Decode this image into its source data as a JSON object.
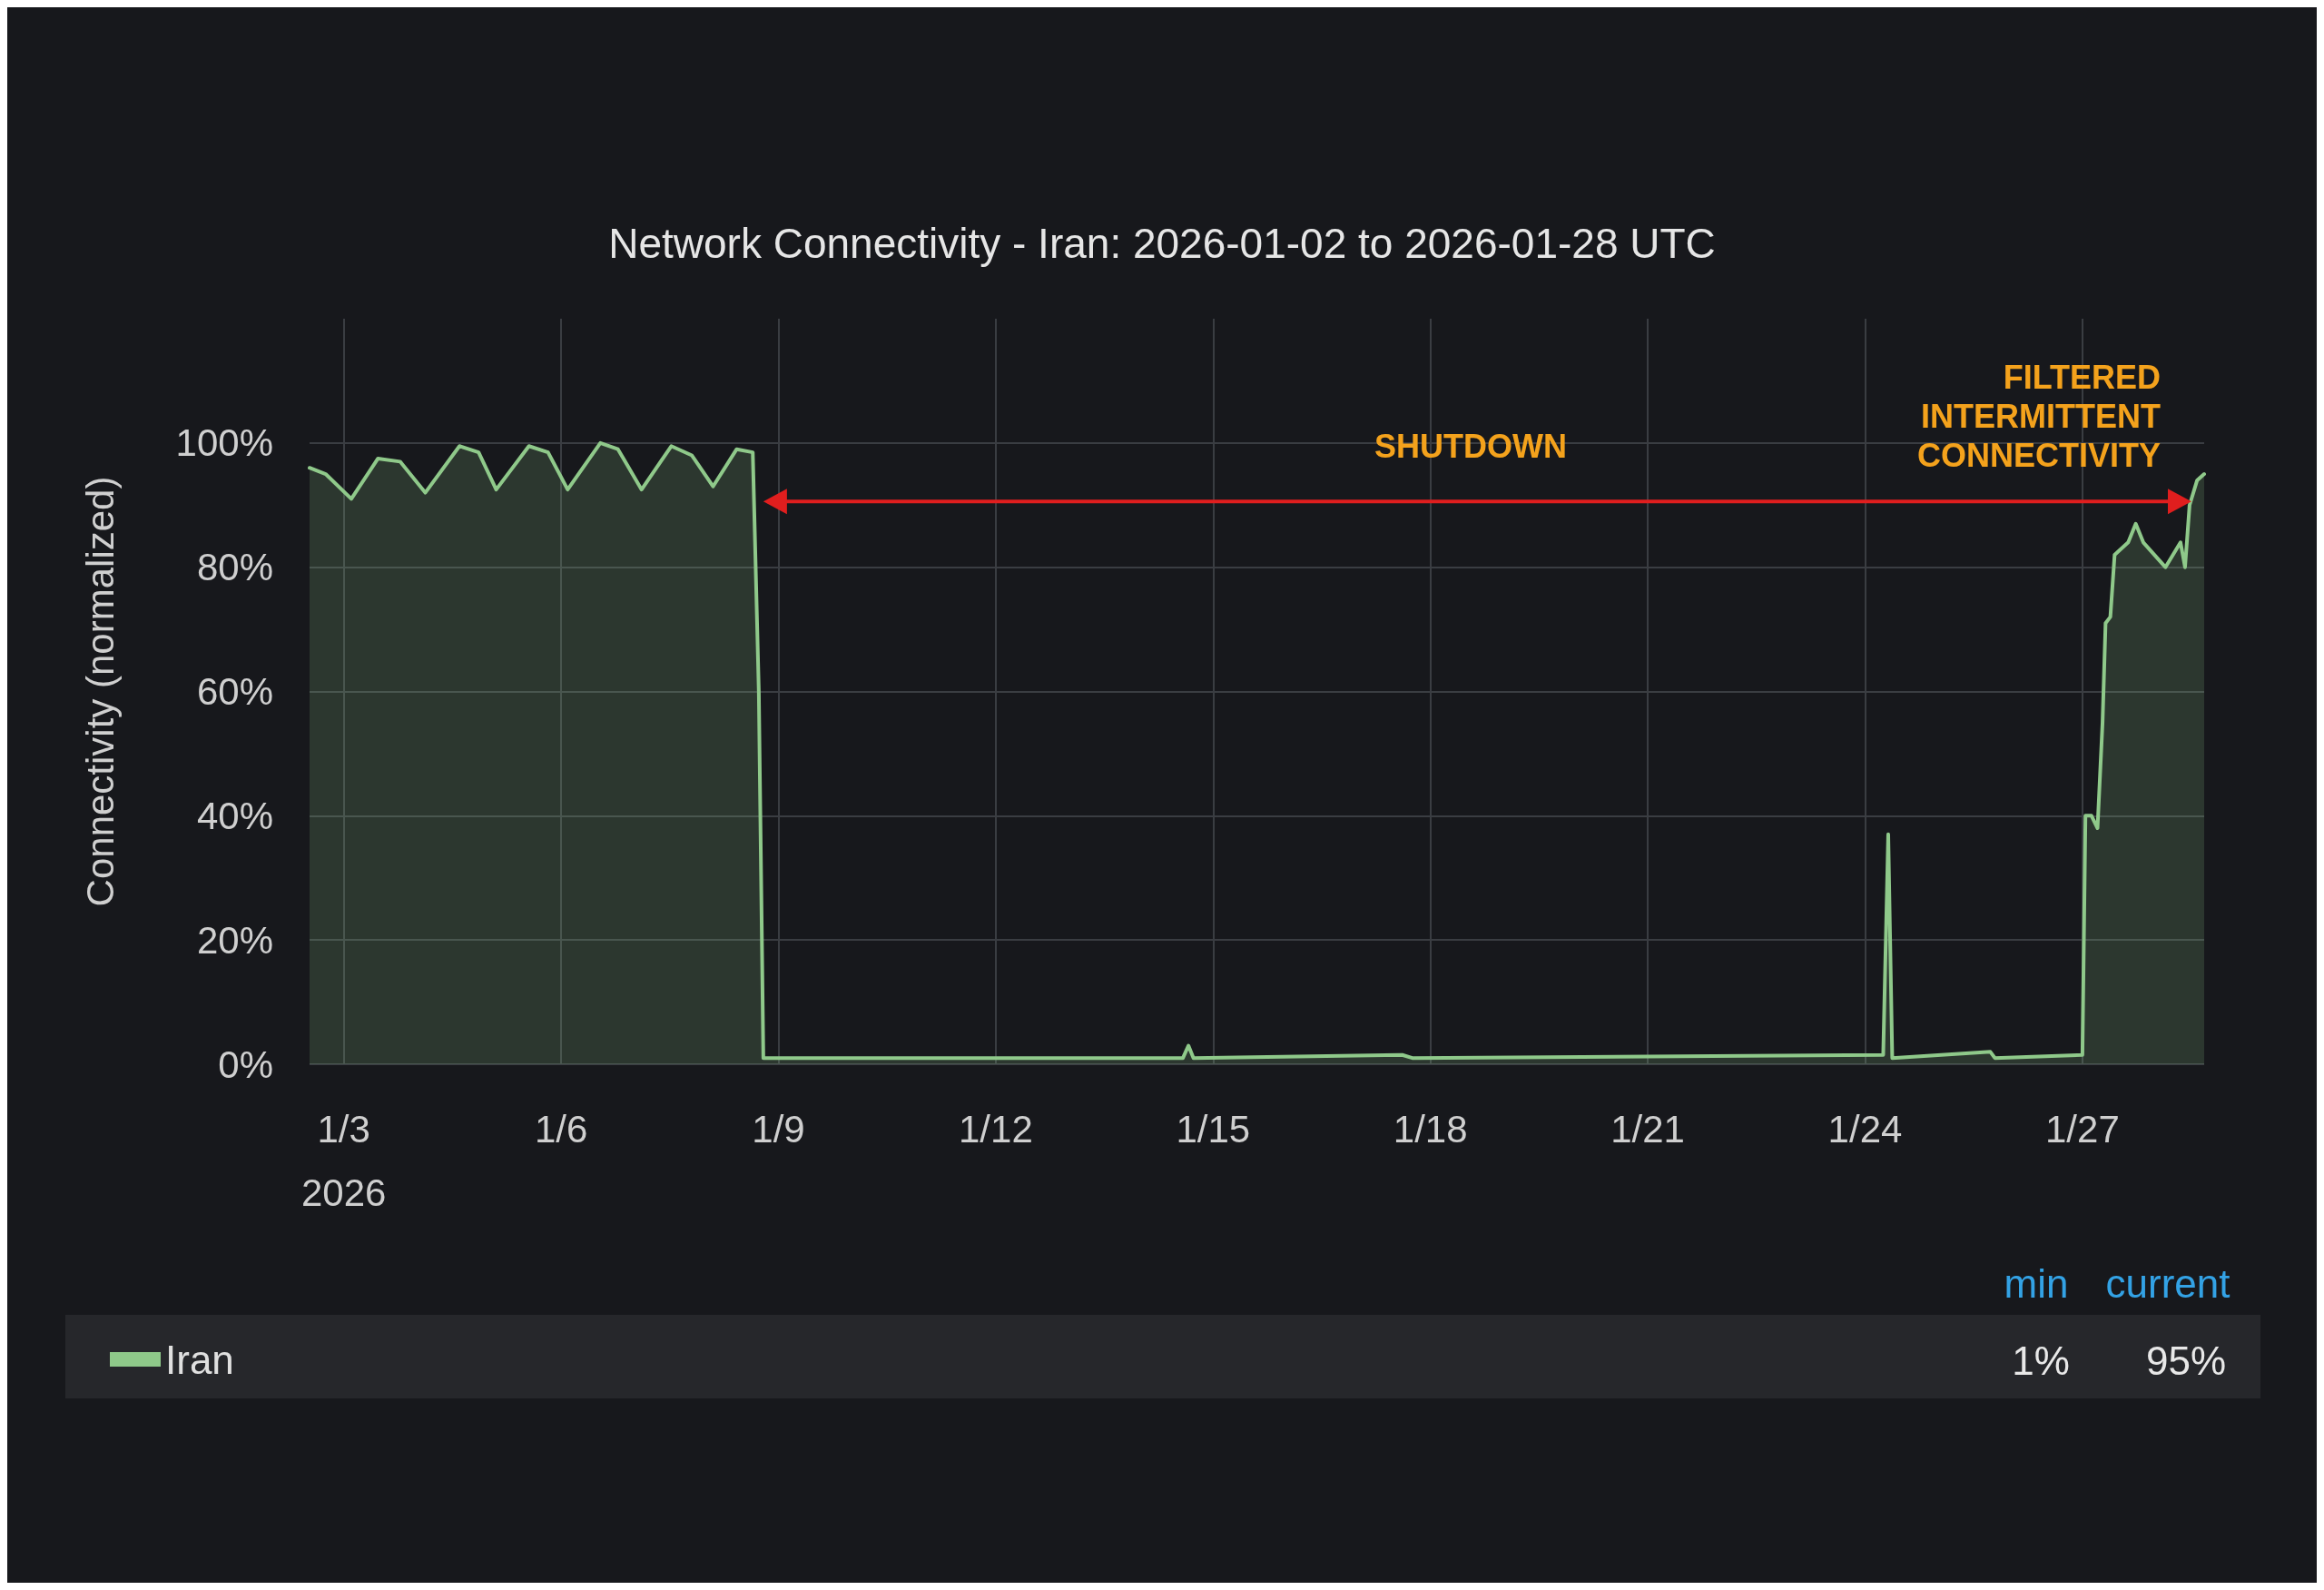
{
  "chart_data": {
    "type": "area",
    "title": "Network Connectivity - Iran: 2026-01-02 to 2026-01-28 UTC",
    "ylabel": "Connectivity (normalized)",
    "x": [
      "2026-01-02T12:40",
      "2026-01-02T18:00",
      "2026-01-03T02:30",
      "2026-01-03T11:20",
      "2026-01-03T18:40",
      "2026-01-04T03:00",
      "2026-01-04T14:20",
      "2026-01-04T20:40",
      "2026-01-05T02:30",
      "2026-01-05T13:20",
      "2026-01-05T19:40",
      "2026-01-06T02:10",
      "2026-01-06T13:00",
      "2026-01-06T18:50",
      "2026-01-07T02:40",
      "2026-01-07T12:30",
      "2026-01-07T19:20",
      "2026-01-08T02:20",
      "2026-01-08T10:10",
      "2026-01-08T15:30",
      "2026-01-08T17:30",
      "2026-01-08T19:00",
      "2026-01-11T12:00",
      "2026-01-14T14:00",
      "2026-01-14T15:50",
      "2026-01-14T17:30",
      "2026-01-17T14:40",
      "2026-01-17T18:00",
      "2026-01-24T06:00",
      "2026-01-24T07:40",
      "2026-01-24T09:00",
      "2026-01-25T17:30",
      "2026-01-25T19:00",
      "2026-01-27T00:00",
      "2026-01-27T01:00",
      "2026-01-27T03:00",
      "2026-01-27T05:00",
      "2026-01-27T06:40",
      "2026-01-27T07:40",
      "2026-01-27T09:15",
      "2026-01-27T10:40",
      "2026-01-27T15:10",
      "2026-01-27T17:40",
      "2026-01-27T20:10",
      "2026-01-28T03:30",
      "2026-01-28T08:30",
      "2026-01-28T10:00",
      "2026-01-28T11:30",
      "2026-01-28T14:00",
      "2026-01-28T16:20"
    ],
    "series": [
      {
        "name": "Iran",
        "color": "#8fc98a",
        "values": [
          96,
          95,
          91,
          97.5,
          97,
          92,
          99.5,
          98.5,
          92.5,
          99.5,
          98.5,
          92.5,
          100,
          99,
          92.5,
          99.5,
          98,
          93,
          99,
          98.5,
          60,
          1,
          1,
          1,
          3,
          1,
          1.5,
          1,
          1.5,
          37,
          1,
          2,
          1,
          1.5,
          40,
          40,
          38,
          55,
          71,
          72,
          82,
          84,
          87,
          84,
          80,
          84,
          80,
          90,
          94,
          95
        ]
      }
    ],
    "xlim": [
      "2026-01-02T12:40",
      "2026-01-28T16:20"
    ],
    "xticks": [
      {
        "value": "2026-01-03",
        "label": "1/3\n2026"
      },
      {
        "value": "2026-01-06",
        "label": "1/6"
      },
      {
        "value": "2026-01-09",
        "label": "1/9"
      },
      {
        "value": "2026-01-12",
        "label": "1/12"
      },
      {
        "value": "2026-01-15",
        "label": "1/15"
      },
      {
        "value": "2026-01-18",
        "label": "1/18"
      },
      {
        "value": "2026-01-21",
        "label": "1/21"
      },
      {
        "value": "2026-01-24",
        "label": "1/24"
      },
      {
        "value": "2026-01-27",
        "label": "1/27"
      }
    ],
    "ylim": [
      0,
      120
    ],
    "yticks": [
      {
        "value": 0,
        "label": "0%"
      },
      {
        "value": 20,
        "label": "20%"
      },
      {
        "value": 40,
        "label": "40%"
      },
      {
        "value": 60,
        "label": "60%"
      },
      {
        "value": 80,
        "label": "80%"
      },
      {
        "value": 100,
        "label": "100%"
      }
    ],
    "annotations": [
      "SHUTDOWN",
      "FILTERED\nINTERMITTENT\nCONNECTIVITY",
      "min",
      "current",
      "1%",
      "95%"
    ],
    "grid": true,
    "legend": "bottom",
    "marker": "none",
    "line_style": "solid"
  }
}
